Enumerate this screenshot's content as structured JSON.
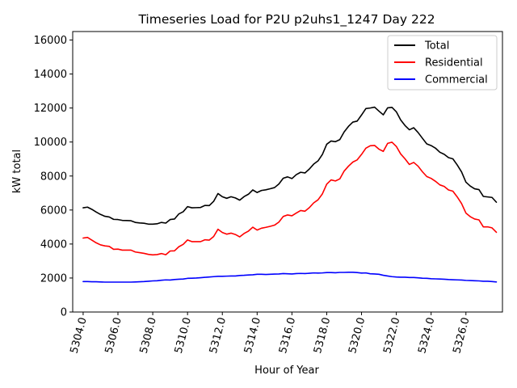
{
  "chart_data": {
    "type": "line",
    "title": "Timeseries Load for P2U p2uhs1_1247  Day 222",
    "xlabel": "Hour of Year",
    "ylabel": "kW total",
    "xlim": [
      5303.4,
      5328.1
    ],
    "ylim": [
      0,
      16500
    ],
    "xticks": [
      5304,
      5306,
      5308,
      5310,
      5312,
      5314,
      5316,
      5318,
      5320,
      5322,
      5324,
      5326
    ],
    "xtick_labels": [
      "5304.0",
      "5306.0",
      "5308.0",
      "5310.0",
      "5312.0",
      "5314.0",
      "5316.0",
      "5318.0",
      "5320.0",
      "5322.0",
      "5324.0",
      "5326.0"
    ],
    "yticks": [
      0,
      2000,
      4000,
      6000,
      8000,
      10000,
      12000,
      14000,
      16000
    ],
    "ytick_labels": [
      "0",
      "2000",
      "4000",
      "6000",
      "8000",
      "10000",
      "12000",
      "14000",
      "16000"
    ],
    "legend_position": "upper right",
    "x_start": 5304.0,
    "x_step": 0.25,
    "series": [
      {
        "name": "Total",
        "color": "#000000",
        "values": [
          6130,
          6170,
          6040,
          5880,
          5740,
          5630,
          5590,
          5450,
          5440,
          5390,
          5380,
          5370,
          5270,
          5240,
          5220,
          5170,
          5170,
          5190,
          5270,
          5230,
          5440,
          5470,
          5770,
          5900,
          6200,
          6130,
          6140,
          6150,
          6270,
          6260,
          6510,
          6970,
          6780,
          6690,
          6780,
          6710,
          6580,
          6790,
          6930,
          7180,
          7030,
          7150,
          7190,
          7250,
          7320,
          7530,
          7870,
          7950,
          7850,
          8080,
          8220,
          8180,
          8410,
          8700,
          8890,
          9270,
          9870,
          10060,
          10020,
          10140,
          10590,
          10920,
          11170,
          11230,
          11590,
          11970,
          12000,
          12050,
          11820,
          11600,
          12010,
          12040,
          11780,
          11300,
          10970,
          10720,
          10840,
          10560,
          10220,
          9890,
          9790,
          9640,
          9400,
          9280,
          9080,
          9010,
          8650,
          8240,
          7640,
          7410,
          7250,
          7200,
          6800,
          6770,
          6740,
          6460
        ]
      },
      {
        "name": "Residential",
        "color": "#ff0000",
        "values": [
          4350,
          4390,
          4230,
          4070,
          3950,
          3890,
          3860,
          3690,
          3700,
          3640,
          3640,
          3640,
          3530,
          3490,
          3450,
          3390,
          3360,
          3380,
          3440,
          3370,
          3590,
          3600,
          3840,
          3980,
          4240,
          4140,
          4140,
          4140,
          4250,
          4230,
          4440,
          4870,
          4680,
          4580,
          4640,
          4560,
          4420,
          4620,
          4760,
          4990,
          4820,
          4930,
          4980,
          5040,
          5110,
          5290,
          5620,
          5710,
          5660,
          5820,
          5970,
          5930,
          6140,
          6420,
          6600,
          6950,
          7520,
          7770,
          7710,
          7830,
          8290,
          8580,
          8820,
          8950,
          9270,
          9640,
          9780,
          9800,
          9580,
          9450,
          9920,
          9990,
          9740,
          9300,
          9010,
          8680,
          8800,
          8580,
          8250,
          7970,
          7860,
          7690,
          7480,
          7390,
          7180,
          7110,
          6770,
          6380,
          5820,
          5610,
          5470,
          5420,
          5010,
          5010,
          4950,
          4690
        ]
      },
      {
        "name": "Commercial",
        "color": "#0000ff",
        "values": [
          1790,
          1790,
          1780,
          1780,
          1770,
          1760,
          1760,
          1760,
          1760,
          1760,
          1760,
          1760,
          1770,
          1780,
          1790,
          1810,
          1830,
          1840,
          1870,
          1890,
          1880,
          1910,
          1930,
          1940,
          1980,
          1990,
          2000,
          2020,
          2040,
          2060,
          2080,
          2100,
          2100,
          2110,
          2120,
          2120,
          2150,
          2160,
          2180,
          2190,
          2220,
          2220,
          2210,
          2220,
          2230,
          2240,
          2260,
          2250,
          2240,
          2260,
          2270,
          2260,
          2280,
          2300,
          2290,
          2300,
          2320,
          2320,
          2310,
          2330,
          2330,
          2340,
          2340,
          2320,
          2290,
          2300,
          2250,
          2240,
          2220,
          2160,
          2120,
          2080,
          2060,
          2050,
          2050,
          2030,
          2030,
          2010,
          1990,
          1980,
          1960,
          1950,
          1940,
          1930,
          1910,
          1900,
          1890,
          1880,
          1860,
          1850,
          1840,
          1830,
          1810,
          1810,
          1790,
          1770
        ]
      }
    ]
  }
}
